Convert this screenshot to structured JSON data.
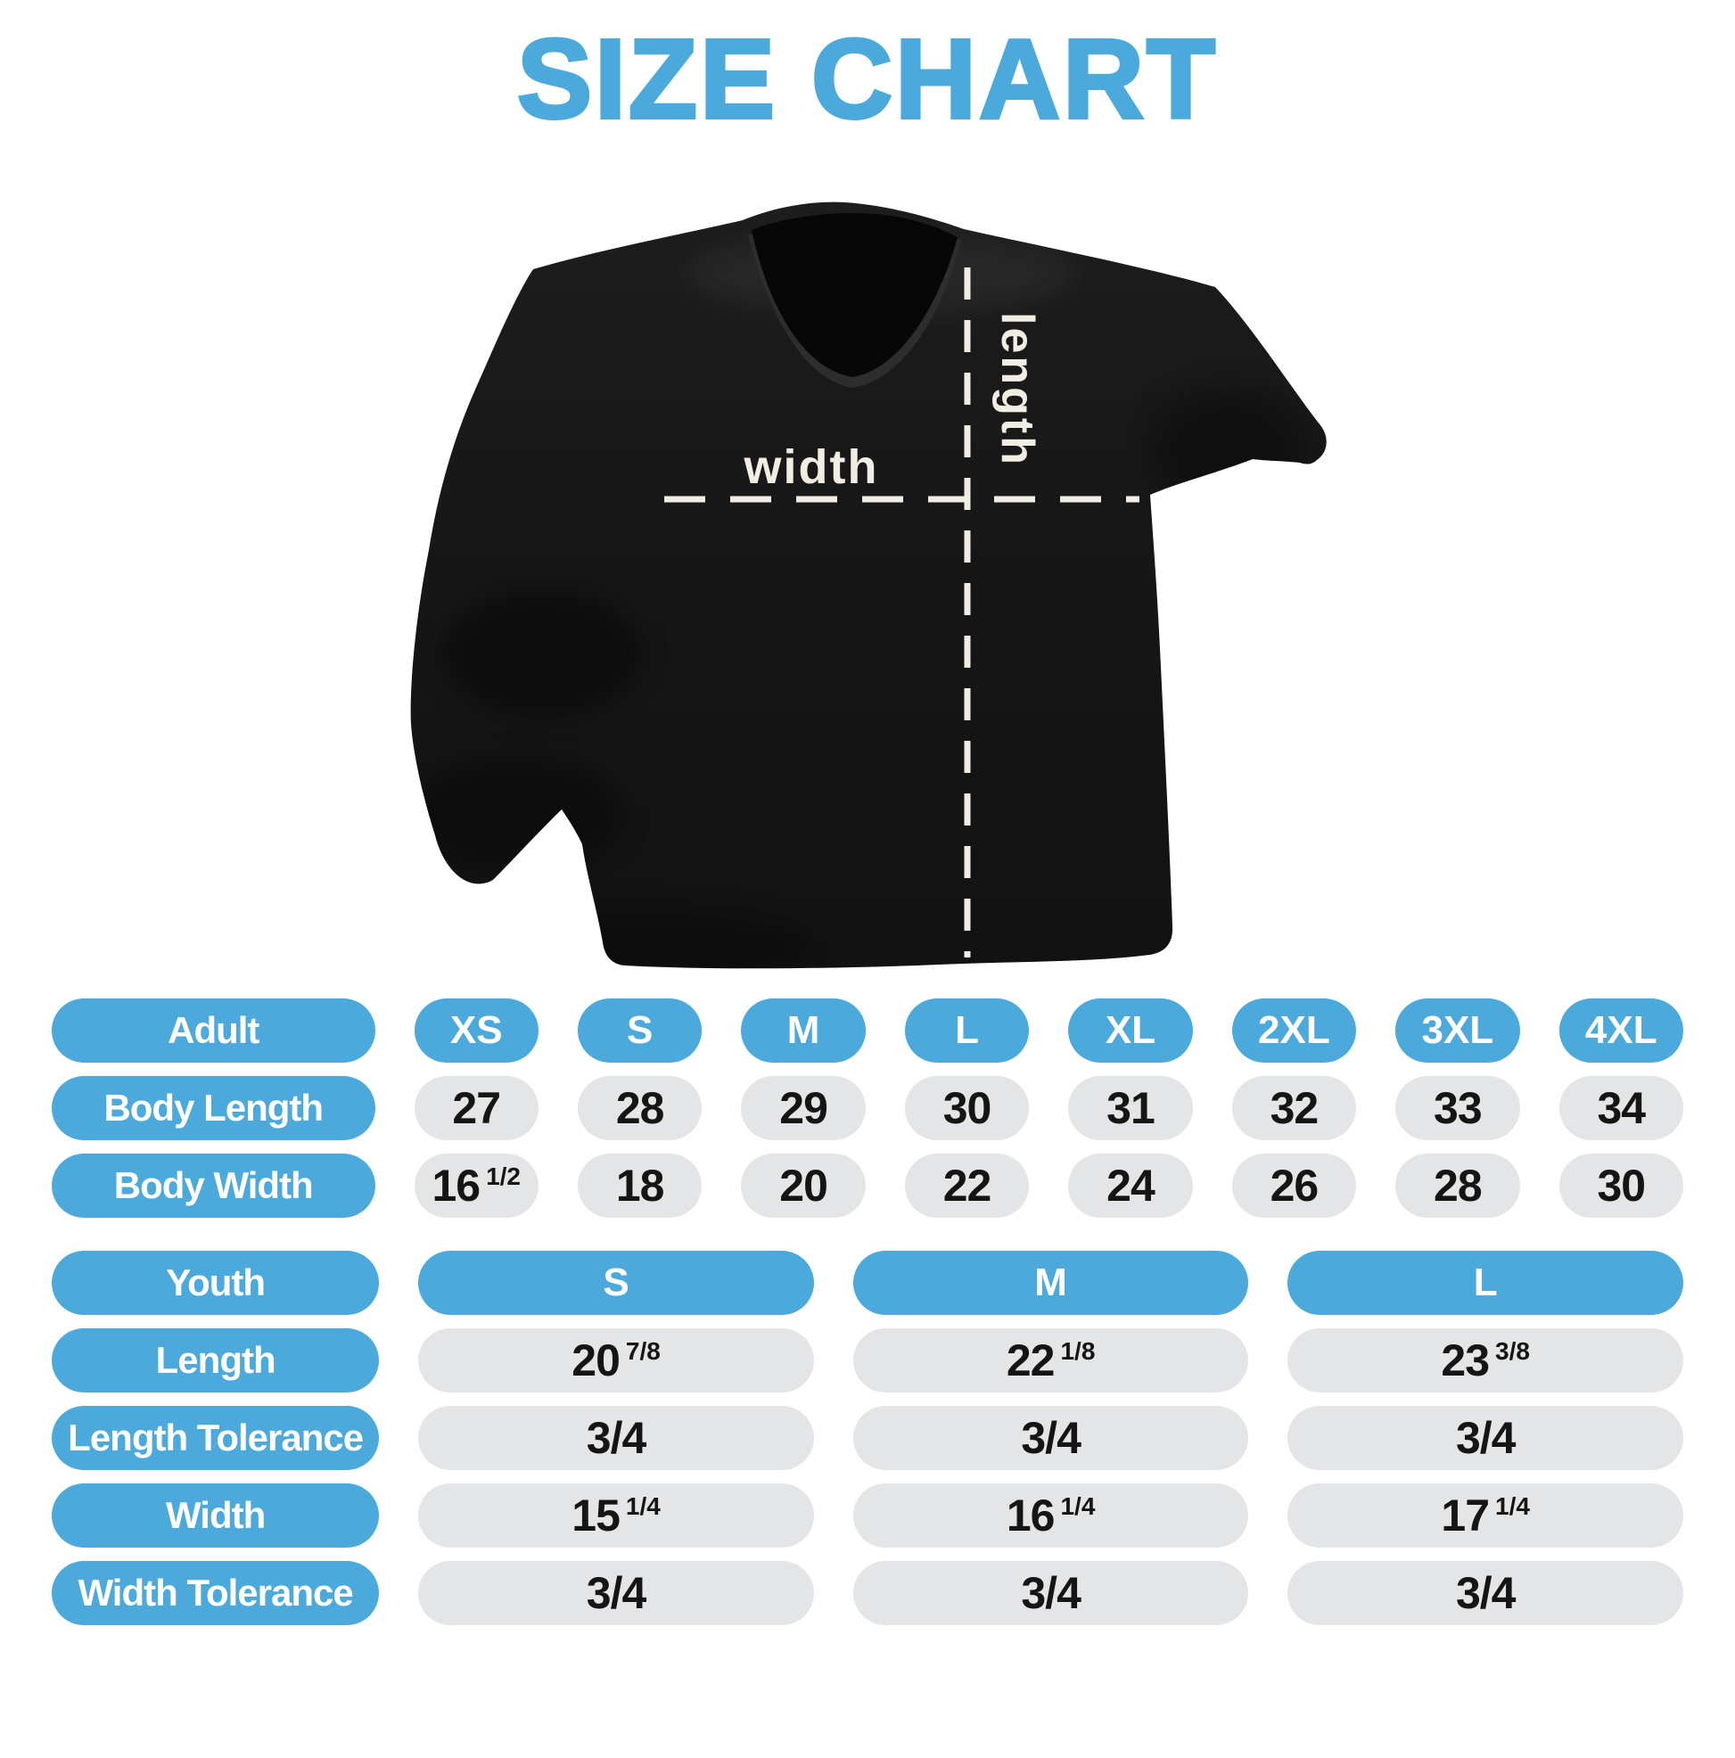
{
  "title": "SIZE CHART",
  "colors": {
    "accent": "#4BA9DC",
    "cell_background": "#E4E5E7",
    "cell_text": "#151515",
    "shirt_color": "#161616",
    "annotation_color": "#F2EDE3",
    "background": "#FFFFFF"
  },
  "shirt": {
    "width_label": "width",
    "length_label": "length"
  },
  "adult_table": {
    "header": [
      "Adult",
      "XS",
      "S",
      "M",
      "L",
      "XL",
      "2XL",
      "3XL",
      "4XL"
    ],
    "rows": [
      {
        "label": "Body Length",
        "values": [
          "27",
          "28",
          "29",
          "30",
          "31",
          "32",
          "33",
          "34"
        ]
      },
      {
        "label": "Body Width",
        "values": [
          "16 1/2",
          "18",
          "20",
          "22",
          "24",
          "26",
          "28",
          "30"
        ]
      }
    ]
  },
  "youth_table": {
    "header": [
      "Youth",
      "S",
      "M",
      "L"
    ],
    "rows": [
      {
        "label": "Length",
        "values": [
          "20 7/8",
          "22 1/8",
          "23 3/8"
        ]
      },
      {
        "label": "Length Tolerance",
        "values": [
          "3/4",
          "3/4",
          "3/4"
        ]
      },
      {
        "label": "Width",
        "values": [
          "15 1/4",
          "16 1/4",
          "17 1/4"
        ]
      },
      {
        "label": "Width Tolerance",
        "values": [
          "3/4",
          "3/4",
          "3/4"
        ]
      }
    ]
  }
}
